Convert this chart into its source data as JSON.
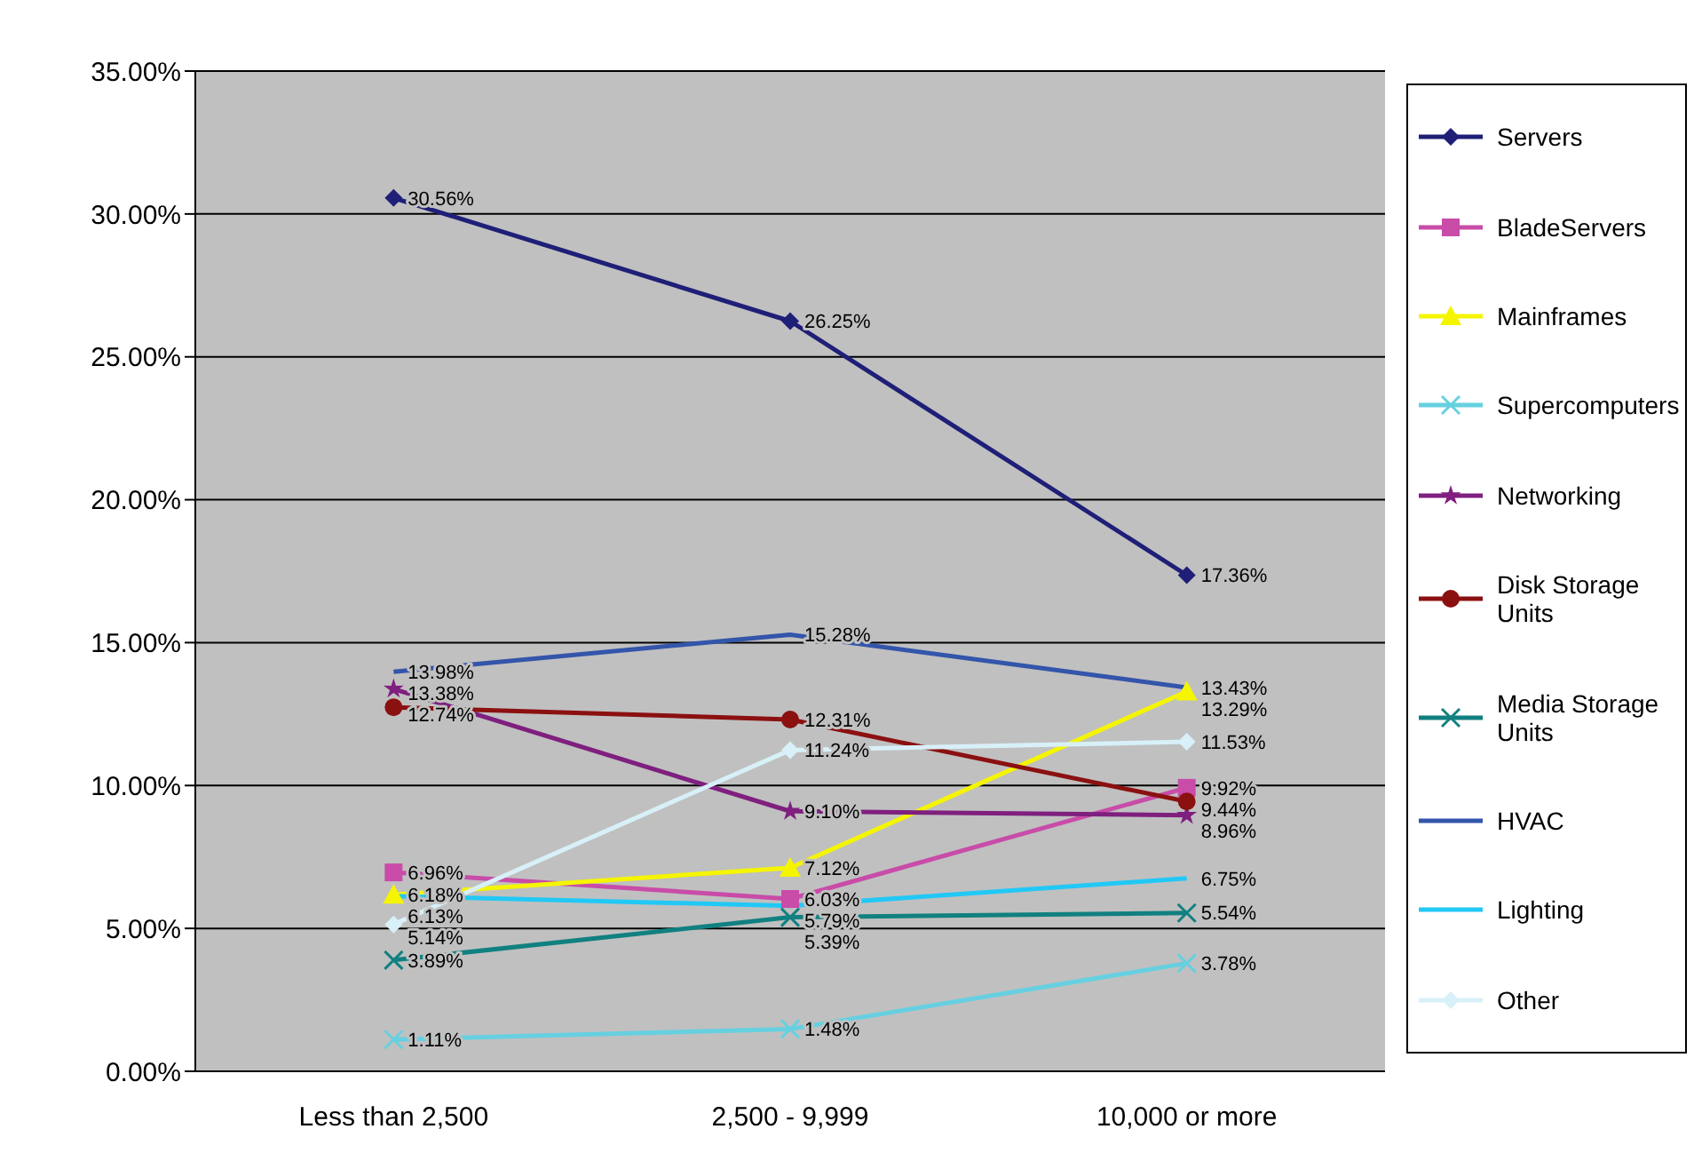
{
  "chart_data": {
    "type": "line",
    "categories": [
      "Less than 2,500",
      "2,500 - 9,999",
      "10,000 or more"
    ],
    "ylim": [
      0,
      35
    ],
    "yticks": [
      {
        "value": 0,
        "label": "0.00%"
      },
      {
        "value": 5,
        "label": "5.00%"
      },
      {
        "value": 10,
        "label": "10.00%"
      },
      {
        "value": 15,
        "label": "15.00%"
      },
      {
        "value": 20,
        "label": "20.00%"
      },
      {
        "value": 25,
        "label": "25.00%"
      },
      {
        "value": 30,
        "label": "30.00%"
      },
      {
        "value": 35,
        "label": "35.00%"
      }
    ],
    "grid": "y",
    "legend": "right",
    "series": [
      {
        "name": "Servers",
        "color": "#1f1f78",
        "marker": "diamond",
        "values": [
          30.56,
          26.25,
          17.36
        ],
        "value_labels": [
          "30.56%",
          "26.25%",
          "17.36%"
        ]
      },
      {
        "name": "BladeServers",
        "color": "#c84ca8",
        "marker": "square",
        "values": [
          6.96,
          6.03,
          9.92
        ],
        "value_labels": [
          "6.96%",
          "6.03%",
          "9.92%"
        ]
      },
      {
        "name": "Mainframes",
        "color": "#f5f500",
        "marker": "triangle",
        "values": [
          6.18,
          7.12,
          13.29
        ],
        "value_labels": [
          "6.18%",
          "7.12%",
          "13.29%"
        ]
      },
      {
        "name": "Supercomputers",
        "color": "#66d0e0",
        "marker": "cross",
        "values": [
          1.11,
          1.48,
          3.78
        ],
        "value_labels": [
          "1.11%",
          "1.48%",
          "3.78%"
        ]
      },
      {
        "name": "Networking",
        "color": "#7f1f7f",
        "marker": "star",
        "values": [
          13.38,
          9.1,
          8.96
        ],
        "value_labels": [
          "13.38%",
          "9.10%",
          "8.96%"
        ]
      },
      {
        "name": "Disk Storage Units",
        "color": "#8b1010",
        "marker": "circle",
        "values": [
          12.74,
          12.31,
          9.44
        ],
        "value_labels": [
          "12.74%",
          "12.31%",
          "9.44%"
        ]
      },
      {
        "name": "Media Storage Units",
        "color": "#118080",
        "marker": "cross",
        "values": [
          3.89,
          5.39,
          5.54
        ],
        "value_labels": [
          "3.89%",
          "5.39%",
          "5.54%"
        ]
      },
      {
        "name": "HVAC",
        "color": "#3355aa",
        "marker": "none",
        "values": [
          13.98,
          15.28,
          13.43
        ],
        "value_labels": [
          "13.98%",
          "15.28%",
          "13.43%"
        ]
      },
      {
        "name": "Lighting",
        "color": "#22c8f5",
        "marker": "none",
        "values": [
          6.13,
          5.79,
          6.75
        ],
        "value_labels": [
          "6.13%",
          "5.79%",
          "6.75%"
        ]
      },
      {
        "name": "Other",
        "color": "#d8f0f8",
        "marker": "diamond",
        "values": [
          5.14,
          11.24,
          11.53
        ],
        "value_labels": [
          "5.14%",
          "11.24%",
          "11.53%"
        ]
      }
    ]
  }
}
